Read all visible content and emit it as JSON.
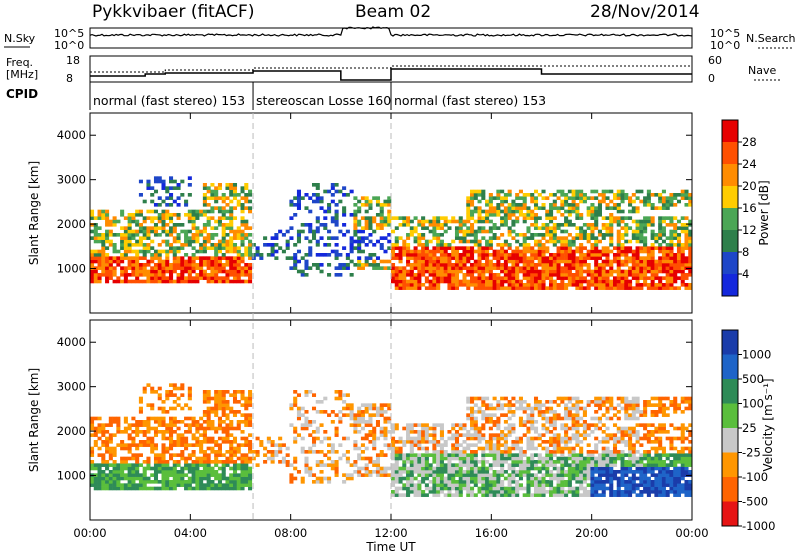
{
  "header": {
    "title": "Pykkvibaer (fitACF)",
    "beam": "Beam 02",
    "date": "28/Nov/2014"
  },
  "strips": {
    "nsky_label": "N.Sky",
    "nsearch_label": "N.Search",
    "freq_label_1": "Freq.",
    "freq_label_2": "[MHz]",
    "nave_label": "Nave",
    "cpid_label": "CPID",
    "nsky_ticks": [
      "10^5",
      "10^0"
    ],
    "nsearch_ticks": [
      "10^5",
      "10^0"
    ],
    "freq_ticks": [
      "18",
      "8"
    ],
    "nave_ticks": [
      "60",
      "0"
    ]
  },
  "cpid_segments": [
    {
      "label": "normal (fast stereo) 153",
      "start_h": 0,
      "end_h": 6.5
    },
    {
      "label": "stereoscan Losse 160",
      "start_h": 6.5,
      "end_h": 12
    },
    {
      "label": "normal (fast stereo) 153",
      "start_h": 12,
      "end_h": 24
    }
  ],
  "colors": {
    "power_scale": [
      "#1428dc",
      "#1e46c8",
      "#2e7f4b",
      "#4ba655",
      "#ffcc00",
      "#ff8c00",
      "#ff5000",
      "#e60000"
    ],
    "velocity_scale": [
      "#1a3caa",
      "#1e64c8",
      "#2e8b57",
      "#5abe3c",
      "#c8c8c8",
      "#ff9600",
      "#ff6400",
      "#e61414"
    ]
  },
  "chart_data": [
    {
      "type": "heatmap",
      "panel": "power",
      "ylabel": "Slant Range [km]",
      "ylim": [
        0,
        4500
      ],
      "yticks": [
        1000,
        2000,
        3000,
        4000
      ],
      "xlim": [
        0,
        24
      ],
      "colorbar_label": "Power [dB]",
      "colorbar_ticks": [
        "28",
        "24",
        "20",
        "16",
        "12",
        "8",
        "4"
      ],
      "colorbar_range": [
        0,
        32
      ]
    },
    {
      "type": "heatmap",
      "panel": "velocity",
      "ylabel": "Slant Range [km]",
      "ylim": [
        0,
        4500
      ],
      "yticks": [
        1000,
        2000,
        3000,
        4000
      ],
      "xlim": [
        0,
        24
      ],
      "colorbar_label": "Velocity [m s⁻¹]",
      "colorbar_ticks": [
        "1000",
        "500",
        "100",
        "25",
        "-25",
        "-100",
        "-500",
        "-1000"
      ]
    }
  ],
  "xaxis": {
    "label": "Time UT",
    "ticks": [
      "00:00",
      "04:00",
      "08:00",
      "12:00",
      "16:00",
      "20:00",
      "00:00"
    ],
    "tick_hours": [
      0,
      4,
      8,
      12,
      16,
      20,
      24
    ]
  }
}
